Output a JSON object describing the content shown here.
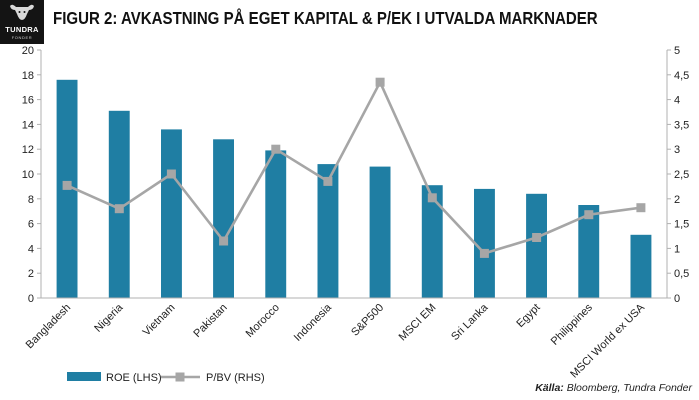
{
  "brand": {
    "name": "TUNDRA",
    "sub": "FONDER"
  },
  "header": {
    "title": "FIGUR 2: AVKASTNING PÅ EGET KAPITAL & P/EK I UTVALDA MARKNADER"
  },
  "source": {
    "label": "Källa:",
    "text": " Bloomberg, Tundra Fonder"
  },
  "colors": {
    "bar": "#1f7ea3",
    "line": "#a6a6a6",
    "axis": "#b0b0b0"
  },
  "chart_data": {
    "type": "bar",
    "categories": [
      "Bangladesh",
      "Nigeria",
      "Vietnam",
      "Pakistan",
      "Morocco",
      "Indonesia",
      "S&P500",
      "MSCI EM",
      "Sri Lanka",
      "Egypt",
      "Philippines",
      "MSCI World ex USA"
    ],
    "series": [
      {
        "name": "ROE (LHS)",
        "type": "bar",
        "axis": "left",
        "values": [
          17.6,
          15.1,
          13.6,
          12.8,
          11.9,
          10.8,
          10.6,
          9.1,
          8.8,
          8.4,
          7.5,
          5.1
        ]
      },
      {
        "name": "P/BV (RHS)",
        "type": "line",
        "axis": "right",
        "values": [
          2.27,
          1.8,
          2.5,
          1.15,
          3.0,
          2.35,
          4.35,
          2.02,
          0.9,
          1.22,
          1.68,
          1.82
        ]
      }
    ],
    "ylim": [
      0,
      20
    ],
    "yticks": [
      "0",
      "2",
      "4",
      "6",
      "8",
      "10",
      "12",
      "14",
      "16",
      "18",
      "20"
    ],
    "y2lim": [
      0,
      5
    ],
    "y2ticks": [
      "0",
      "0,5",
      "1",
      "1,5",
      "2",
      "2,5",
      "3",
      "3,5",
      "4",
      "4,5",
      "5"
    ],
    "grid": false,
    "legend_position": "bottom-left"
  }
}
